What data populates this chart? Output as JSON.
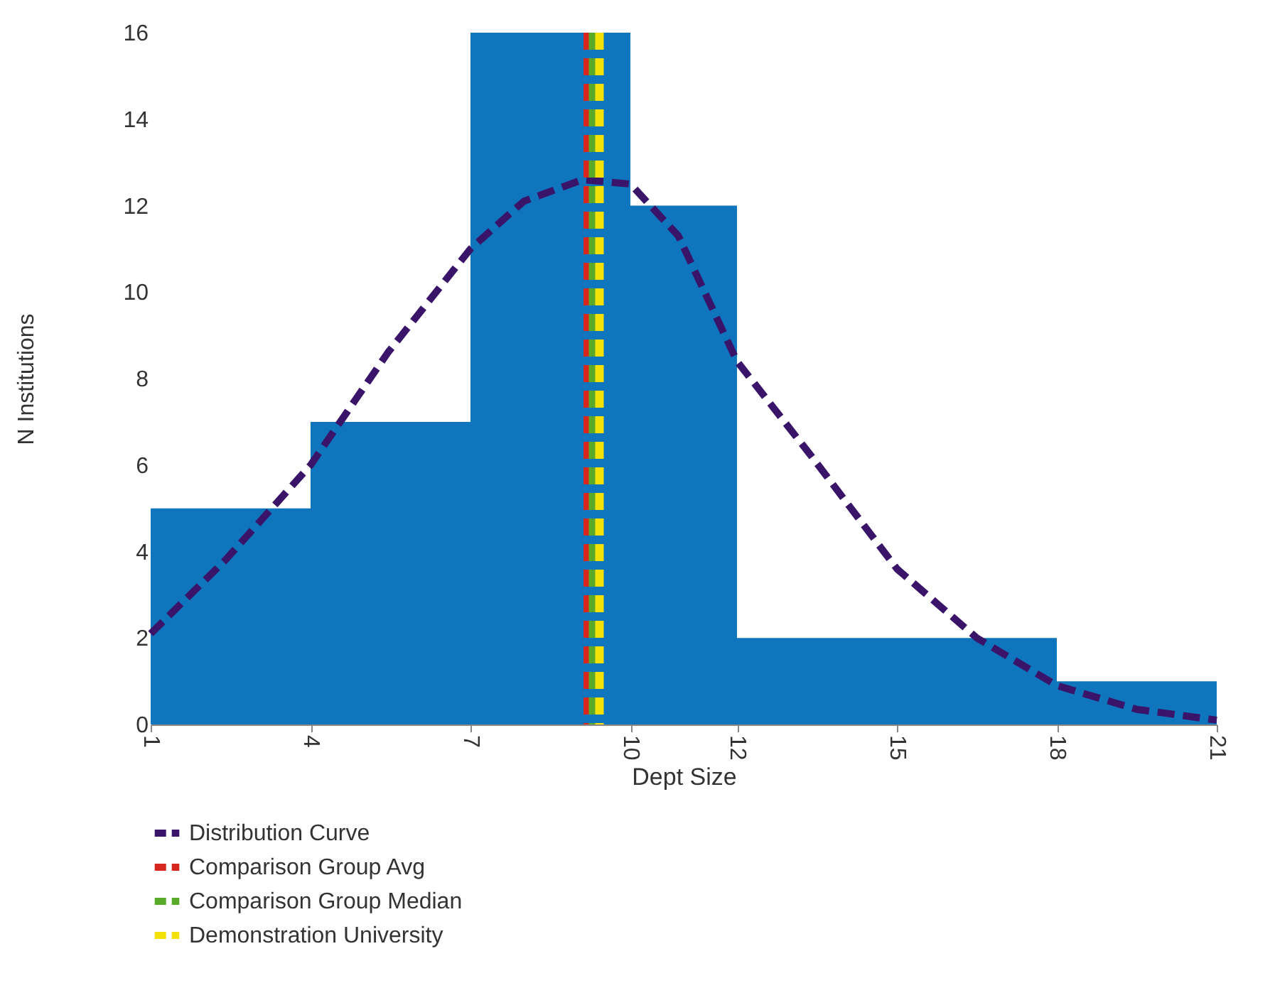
{
  "chart_data": {
    "type": "histogram",
    "xlabel": "Dept Size",
    "ylabel": "N Institutions",
    "bins": [
      1,
      4,
      7,
      10,
      12,
      18,
      21
    ],
    "values": [
      5,
      7,
      16,
      12,
      2,
      1
    ],
    "color": "#0f75bc",
    "xlim": [
      1,
      21
    ],
    "xticks": [
      1,
      4,
      7,
      10,
      12,
      15,
      18,
      21
    ],
    "ylim": [
      0,
      16
    ],
    "yticks": [
      0,
      2,
      4,
      6,
      8,
      10,
      12,
      14,
      16
    ],
    "grid": false,
    "legend": "bottom",
    "series": [
      {
        "name": "Distribution Curve",
        "type": "line",
        "color": "#3a1468",
        "line_style": "dashed",
        "x": [
          1,
          2.4,
          4,
          5.45,
          7,
          8,
          9.1,
          10,
          10.9,
          12,
          13.4,
          15,
          16.5,
          18,
          19.5,
          21
        ],
        "values": [
          2.1,
          3.8,
          6,
          8.6,
          11,
          12.1,
          12.6,
          12.5,
          11.3,
          8.4,
          6.2,
          3.6,
          2,
          0.9,
          0.35,
          0.1
        ]
      }
    ],
    "ref_lines": [
      {
        "axis": "x",
        "value": 9.2,
        "label": "Comparison Group Avg",
        "color": "#d7261e",
        "line_style": "dashed"
      },
      {
        "axis": "x",
        "value": 9.3,
        "label": "Comparison Group Median",
        "color": "#5aaa2a",
        "line_style": "dashed"
      },
      {
        "axis": "x",
        "value": 9.42,
        "label": "Demonstration University",
        "color": "#f5e10a",
        "line_style": "dashed"
      }
    ]
  }
}
